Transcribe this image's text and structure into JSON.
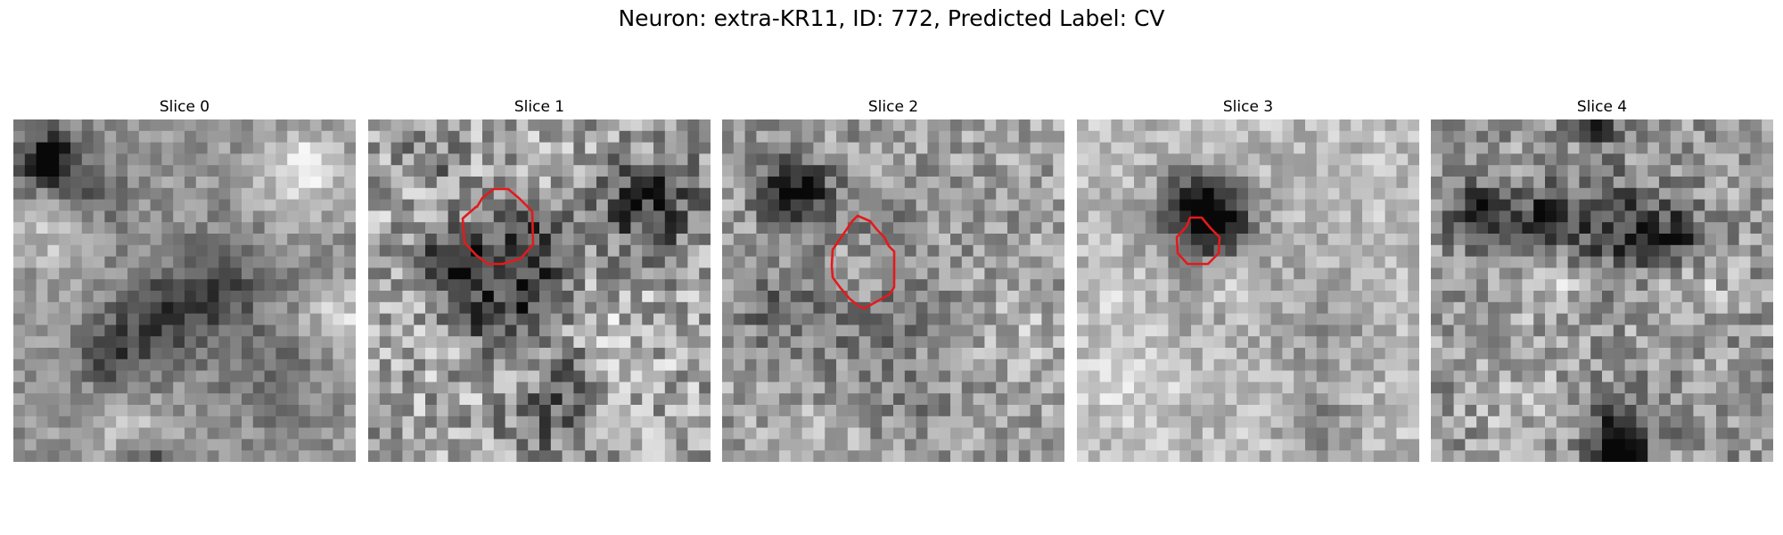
{
  "figure": {
    "title": "Neuron: extra-KR11, ID: 772, Predicted Label: CV"
  },
  "style": {
    "contour_color": "#e31a1c",
    "colormap": "grayscale"
  },
  "panels": [
    {
      "title": "Slice 0",
      "has_contour": false
    },
    {
      "title": "Slice 1",
      "has_contour": true
    },
    {
      "title": "Slice 2",
      "has_contour": true
    },
    {
      "title": "Slice 3",
      "has_contour": true
    },
    {
      "title": "Slice 4",
      "has_contour": false
    }
  ]
}
